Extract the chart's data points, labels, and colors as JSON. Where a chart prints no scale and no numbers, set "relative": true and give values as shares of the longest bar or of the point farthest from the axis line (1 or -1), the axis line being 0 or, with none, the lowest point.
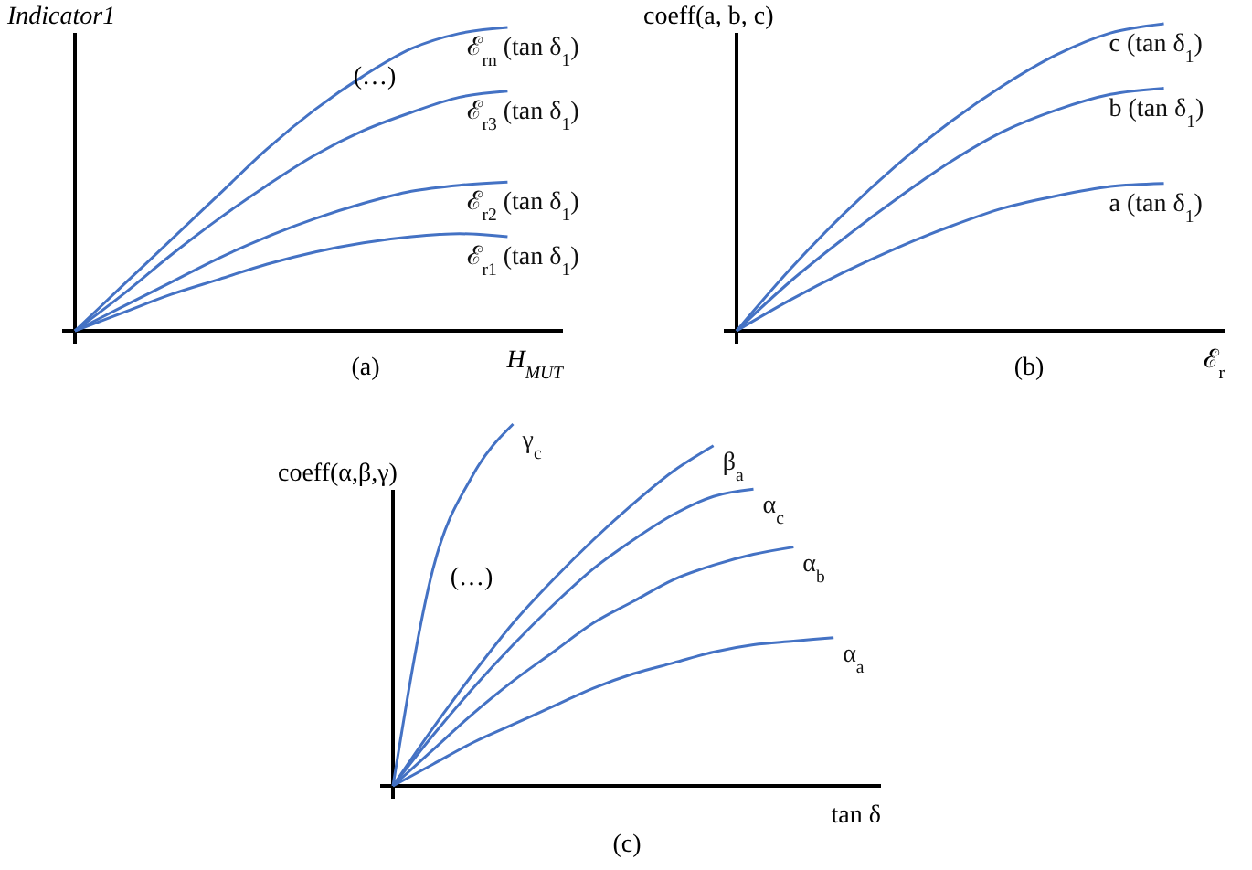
{
  "chart_data": [
    {
      "type": "line",
      "relative": true,
      "title": "(a)",
      "xlabel": "H$_{MUT}$",
      "ylabel": "Indicator1",
      "annotations": [
        "(…)"
      ],
      "categories": [
        null,
        null,
        null,
        null,
        null,
        null,
        null,
        null,
        null,
        null,
        null
      ],
      "series": [
        {
          "name": "ℰ$_{rn}$ (tan δ$_{1}$)",
          "color": "#4472c4",
          "values": [
            0,
            0.15,
            0.3,
            0.45,
            0.6,
            0.73,
            0.84,
            0.93,
            0.98,
            1.0,
            null
          ]
        },
        {
          "name": "ℰ$_{r3}$ (tan δ$_{1}$)",
          "color": "#4472c4",
          "values": [
            0,
            0.12,
            0.25,
            0.37,
            0.48,
            0.58,
            0.66,
            0.72,
            0.77,
            0.79,
            null
          ]
        },
        {
          "name": "ℰ$_{r2}$ (tan δ$_{1}$)",
          "color": "#4472c4",
          "values": [
            0,
            0.08,
            0.16,
            0.24,
            0.31,
            0.37,
            0.42,
            0.46,
            0.48,
            0.49,
            null
          ]
        },
        {
          "name": "ℰ$_{r1}$ (tan δ$_{1}$)",
          "color": "#4472c4",
          "values": [
            0,
            0.06,
            0.12,
            0.17,
            0.22,
            0.26,
            0.29,
            0.31,
            0.32,
            0.31,
            null
          ]
        }
      ]
    },
    {
      "type": "line",
      "relative": true,
      "title": "(b)",
      "xlabel": "ℰ$_{r}$",
      "ylabel": "coeff(a, b, c)",
      "categories": [
        null,
        null,
        null,
        null,
        null,
        null,
        null,
        null,
        null,
        null
      ],
      "series": [
        {
          "name": "c (tan δ$_{1}$)",
          "color": "#4472c4",
          "values": [
            0,
            0.2,
            0.38,
            0.54,
            0.68,
            0.8,
            0.9,
            0.97,
            1.0,
            null
          ]
        },
        {
          "name": "b (tan δ$_{1}$)",
          "color": "#4472c4",
          "values": [
            0,
            0.16,
            0.3,
            0.43,
            0.55,
            0.65,
            0.72,
            0.77,
            0.79,
            null
          ]
        },
        {
          "name": "a (tan δ$_{1}$)",
          "color": "#4472c4",
          "values": [
            0,
            0.1,
            0.19,
            0.27,
            0.34,
            0.4,
            0.44,
            0.47,
            0.48,
            null
          ]
        }
      ]
    },
    {
      "type": "line",
      "relative": true,
      "title": "(c)",
      "xlabel": "tan δ",
      "ylabel": "coeff(α,β,γ)",
      "annotations": [
        "(…)"
      ],
      "categories": [
        null,
        null,
        null,
        null,
        null,
        null,
        null,
        null,
        null,
        null,
        null,
        null,
        null
      ],
      "series": [
        {
          "name": "γ$_{c}$",
          "color": "#4472c4",
          "values": [
            0,
            0.6,
            0.86,
            1.0,
            null,
            null,
            null,
            null,
            null,
            null,
            null,
            null,
            null
          ]
        },
        {
          "name": "β$_{a}$",
          "color": "#4472c4",
          "values": [
            0,
            0.16,
            0.31,
            0.45,
            0.57,
            0.68,
            0.78,
            0.87,
            0.94,
            null,
            null,
            null,
            null
          ]
        },
        {
          "name": "α$_{c}$",
          "color": "#4472c4",
          "values": [
            0,
            0.14,
            0.27,
            0.39,
            0.5,
            0.6,
            0.68,
            0.75,
            0.8,
            0.82,
            null,
            null,
            null
          ]
        },
        {
          "name": "α$_{b}$",
          "color": "#4472c4",
          "values": [
            0,
            0.1,
            0.2,
            0.29,
            0.37,
            0.45,
            0.51,
            0.57,
            0.61,
            0.64,
            0.66,
            null,
            null
          ]
        },
        {
          "name": "α$_{a}$",
          "color": "#4472c4",
          "values": [
            0,
            0.06,
            0.12,
            0.17,
            0.22,
            0.27,
            0.31,
            0.34,
            0.37,
            0.39,
            0.4,
            0.41,
            null
          ]
        }
      ]
    }
  ]
}
